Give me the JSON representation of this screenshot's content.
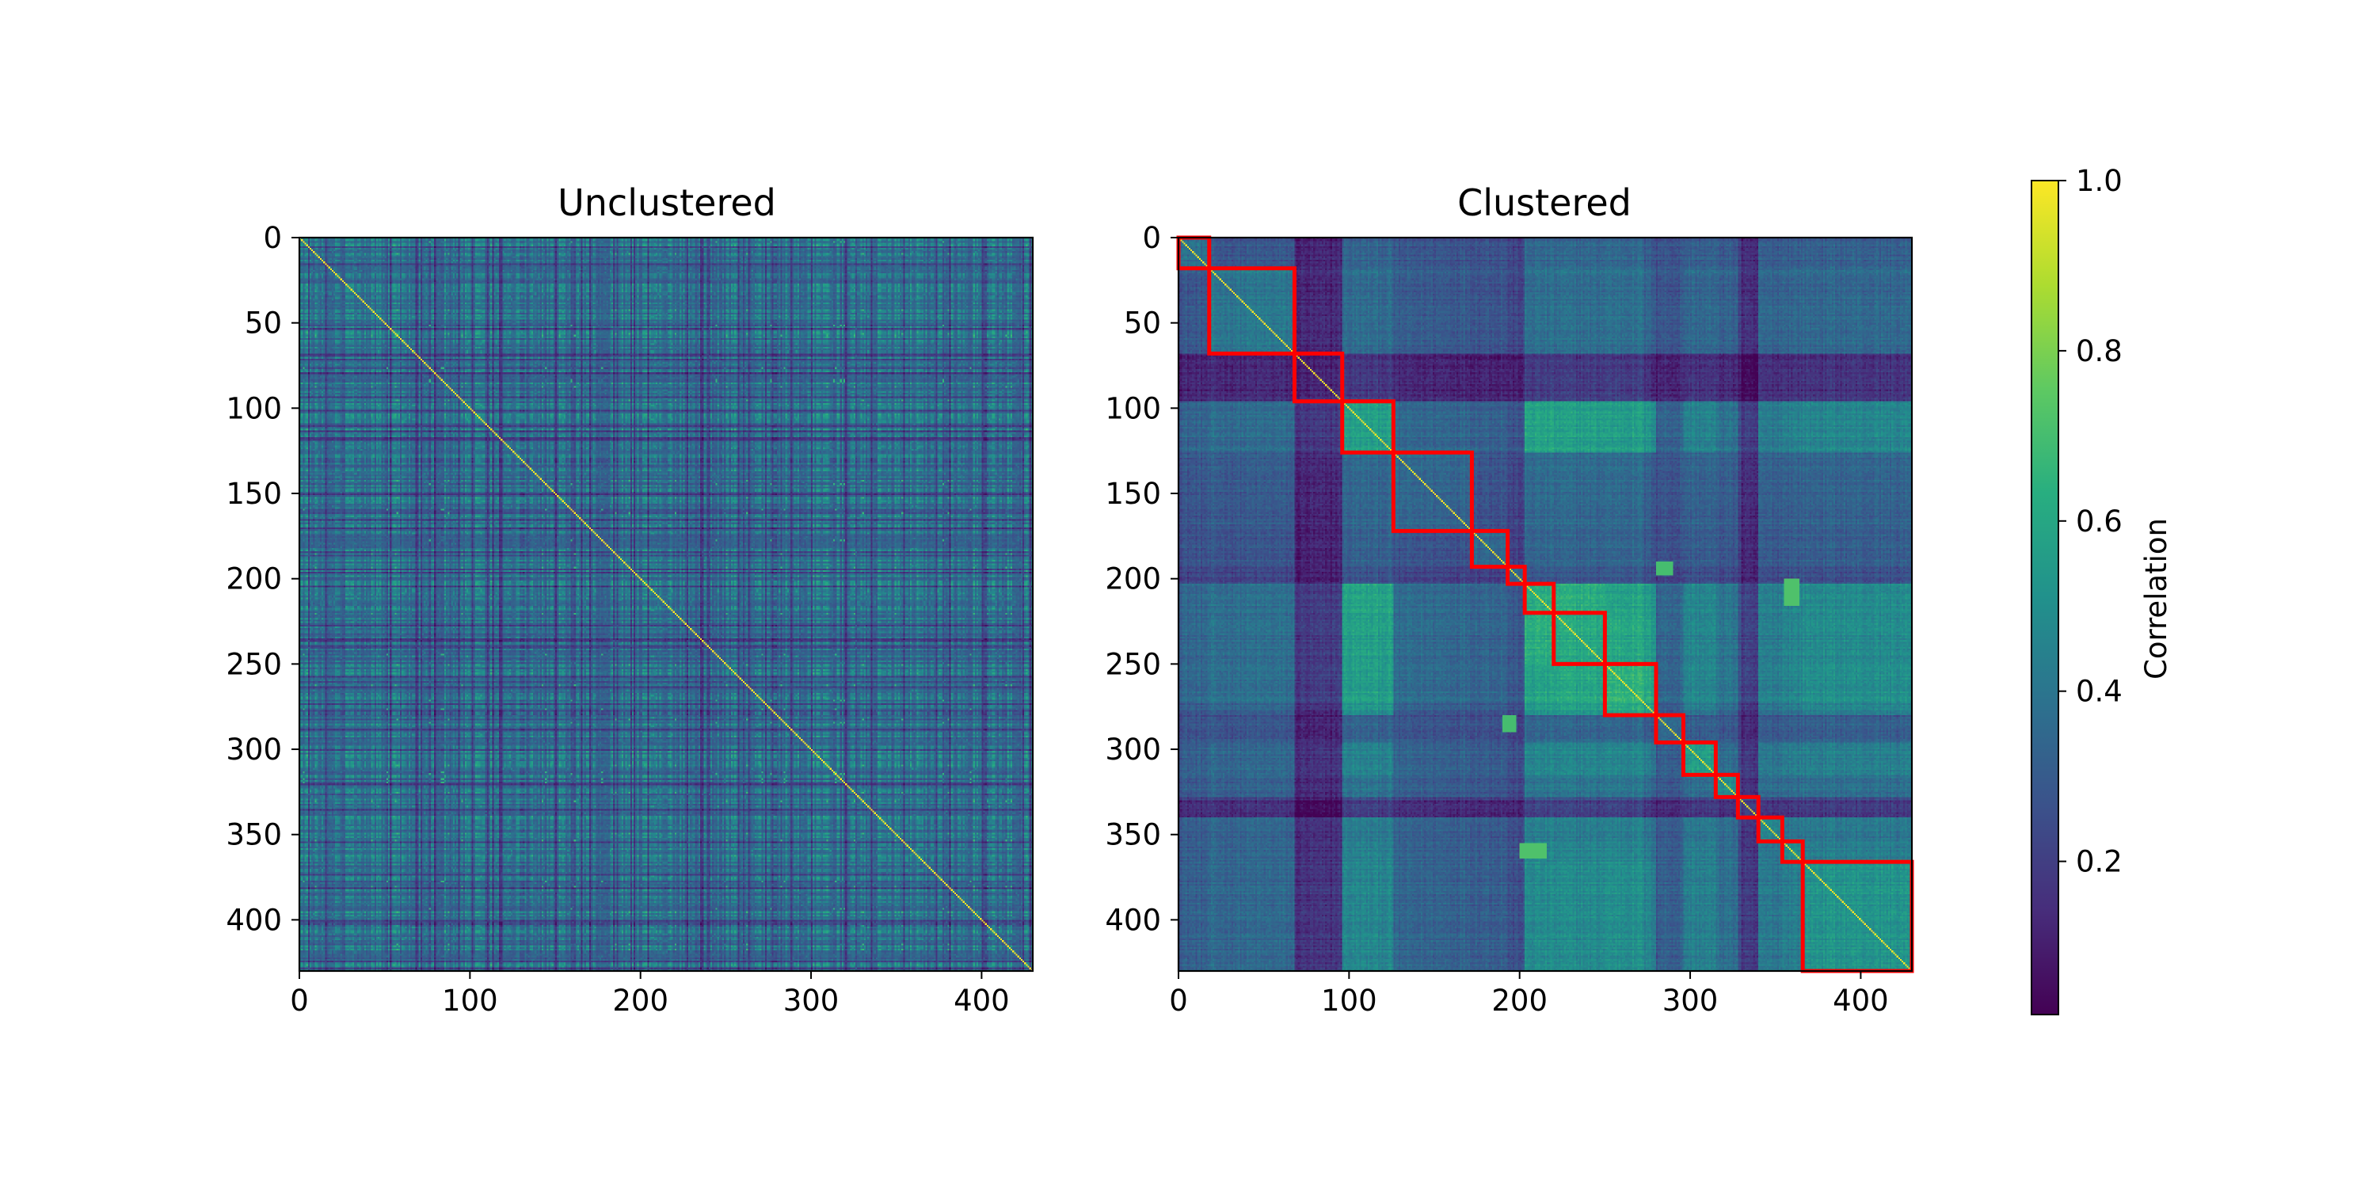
{
  "chart_data": [
    {
      "type": "heatmap",
      "title": "Unclustered",
      "n": 430,
      "xlim": [
        0,
        430
      ],
      "ylim": [
        430,
        0
      ],
      "xticks": [
        0,
        100,
        200,
        300,
        400
      ],
      "yticks": [
        0,
        50,
        100,
        150,
        200,
        250,
        300,
        350,
        400
      ],
      "diagonal_value": 1.0,
      "approx_mean_value": 0.38,
      "visible_dark_bands": [
        130,
        278,
        402
      ]
    },
    {
      "type": "heatmap",
      "title": "Clustered",
      "n": 430,
      "xlim": [
        0,
        430
      ],
      "ylim": [
        430,
        0
      ],
      "xticks": [
        0,
        100,
        200,
        300,
        400
      ],
      "yticks": [
        0,
        50,
        100,
        150,
        200,
        250,
        300,
        350,
        400
      ],
      "diagonal_value": 1.0,
      "cluster_boundaries": [
        0,
        18,
        68,
        96,
        126,
        172,
        193,
        203,
        220,
        250,
        280,
        296,
        315,
        328,
        340,
        354,
        366,
        430
      ],
      "highlight_color": "#ff0000"
    }
  ],
  "colorbar": {
    "label": "Correlation",
    "colormap": "viridis",
    "range": [
      0.02,
      1.0
    ],
    "ticks": [
      0.2,
      0.4,
      0.6,
      0.8,
      1.0
    ],
    "tick_labels": [
      "0.2",
      "0.4",
      "0.6",
      "0.8",
      "1.0"
    ]
  }
}
